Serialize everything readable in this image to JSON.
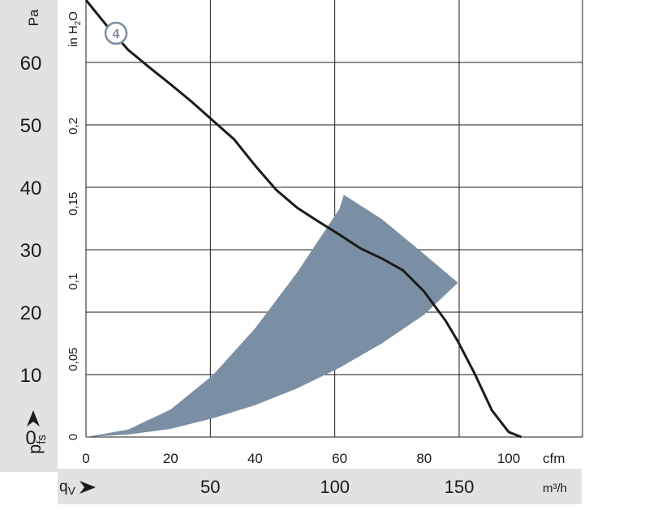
{
  "chart_data": {
    "type": "line",
    "left_axis": {
      "unit": "Pa",
      "ylim": [
        0,
        70
      ],
      "ticks": [
        0,
        10,
        20,
        30,
        40,
        50,
        60
      ],
      "tick_labels": [
        "0",
        "10",
        "20",
        "30",
        "40",
        "50",
        "60"
      ],
      "label_main": "p",
      "label_sub": "fs"
    },
    "right_axis": {
      "unit_main": "in H",
      "unit_sub": "2",
      "unit_end": "O",
      "ticks": [
        0,
        0.05,
        0.1,
        0.15,
        0.2
      ],
      "tick_labels": [
        "0",
        "0,05",
        "0,1",
        "0,15",
        "0,2"
      ]
    },
    "x_axis_cfm": {
      "unit": "cfm",
      "xlim": [
        0,
        117
      ],
      "ticks": [
        0,
        20,
        40,
        60,
        80,
        100
      ],
      "tick_labels": [
        "0",
        "20",
        "40",
        "60",
        "80",
        "100"
      ]
    },
    "x_axis_m3h": {
      "unit": "m³/h",
      "label_main": "q",
      "label_sub": "V",
      "ticks": [
        50,
        100,
        150
      ],
      "tick_labels": [
        "50",
        "100",
        "150"
      ]
    },
    "grid": true,
    "series": [
      {
        "label": "4",
        "color": "#1a1a1a",
        "x": [
          0,
          5,
          10,
          15,
          20,
          25,
          30,
          35,
          40,
          45,
          50,
          55,
          60,
          65,
          70,
          75,
          80,
          85,
          88,
          92,
          96,
          100,
          103
        ],
        "y": [
          70,
          65.8,
          62,
          59.2,
          56.5,
          53.7,
          50.7,
          47.7,
          43.5,
          39.6,
          36.7,
          34.5,
          32.4,
          30.2,
          28.6,
          26.7,
          23.3,
          18.7,
          15.3,
          10.1,
          4.3,
          0.8,
          0
        ]
      }
    ],
    "operating_region": {
      "color": "#7a8fa3",
      "x": [
        0,
        10,
        20,
        30,
        40,
        50,
        60,
        61,
        70,
        80,
        88,
        80,
        70,
        60,
        50,
        40,
        30,
        20,
        10,
        0
      ],
      "y": [
        0,
        1.2,
        4.4,
        9.9,
        17.4,
        26.4,
        36.6,
        38.8,
        34.9,
        29.3,
        24.7,
        19.6,
        15,
        11.1,
        7.8,
        5.1,
        3,
        1.3,
        0.4,
        0
      ]
    }
  }
}
